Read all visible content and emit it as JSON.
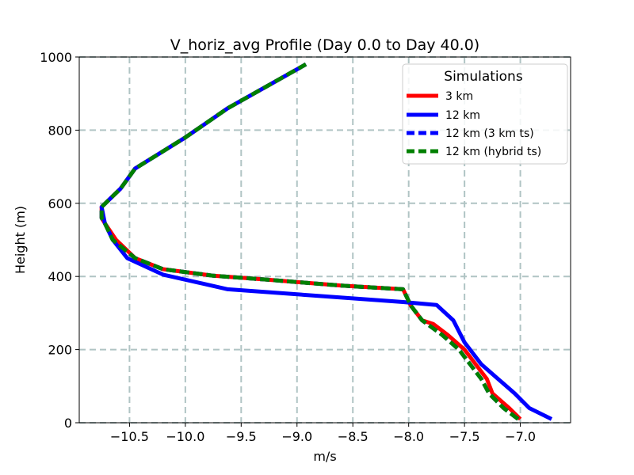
{
  "chart_data": {
    "type": "line",
    "title": "V_horiz_avg Profile (Day 0.0 to Day 40.0)",
    "xlabel": "m/s",
    "ylabel": "Height (m)",
    "xlim": [
      -10.95,
      -6.55
    ],
    "ylim": [
      0,
      1000
    ],
    "xticks": [
      -10.5,
      -10.0,
      -9.5,
      -9.0,
      -8.5,
      -8.0,
      -7.5,
      -7.0
    ],
    "xtick_labels": [
      "−10.5",
      "−10.0",
      "−9.5",
      "−9.0",
      "−8.5",
      "−8.0",
      "−7.5",
      "−7.0"
    ],
    "yticks": [
      0,
      200,
      400,
      600,
      800,
      1000
    ],
    "ytick_labels": [
      "0",
      "200",
      "400",
      "600",
      "800",
      "1000"
    ],
    "grid": true,
    "legend": {
      "title": "Simulations",
      "placement": "upper right"
    },
    "series": [
      {
        "name": "3 km",
        "color": "#ff0000",
        "style": "solid",
        "x": [
          -7.0,
          -7.1,
          -7.25,
          -7.3,
          -7.4,
          -7.5,
          -7.65,
          -7.78,
          -7.88,
          -7.98,
          -8.05,
          -8.6,
          -9.3,
          -9.75,
          -10.2,
          -10.45,
          -10.62,
          -10.72,
          -10.75,
          -10.75,
          -10.58,
          -10.45,
          -10.0,
          -9.62,
          -8.92
        ],
        "y": [
          10,
          40,
          80,
          120,
          160,
          200,
          240,
          270,
          280,
          320,
          365,
          375,
          392,
          402,
          420,
          450,
          500,
          545,
          560,
          590,
          640,
          695,
          780,
          860,
          980
        ]
      },
      {
        "name": "12 km",
        "color": "#0000ff",
        "style": "solid",
        "x": [
          -6.72,
          -6.92,
          -7.05,
          -7.2,
          -7.35,
          -7.5,
          -7.6,
          -7.75,
          -8.05,
          -9.62,
          -10.2,
          -10.52,
          -10.65,
          -10.72,
          -10.75,
          -10.58,
          -10.45,
          -10.0,
          -9.62,
          -8.92
        ],
        "y": [
          10,
          40,
          80,
          120,
          160,
          220,
          280,
          322,
          330,
          365,
          405,
          450,
          500,
          545,
          590,
          640,
          695,
          780,
          860,
          980
        ]
      },
      {
        "name": "12 km (3 km ts)",
        "color": "#0000ff",
        "style": "dashed",
        "x": [
          -7.02,
          -7.15,
          -7.28,
          -7.35,
          -7.45,
          -7.55,
          -7.7,
          -7.88,
          -7.98,
          -8.05,
          -8.6,
          -9.3,
          -9.75,
          -10.2,
          -10.45,
          -10.65,
          -10.72,
          -10.75,
          -10.75,
          -10.58,
          -10.45,
          -10.0,
          -9.62,
          -8.92
        ],
        "y": [
          10,
          40,
          80,
          120,
          160,
          200,
          240,
          280,
          320,
          365,
          375,
          392,
          402,
          420,
          450,
          500,
          545,
          560,
          590,
          640,
          695,
          780,
          860,
          980
        ]
      },
      {
        "name": "12 km (hybrid ts)",
        "color": "#008000",
        "style": "dashed",
        "x": [
          -7.02,
          -7.15,
          -7.28,
          -7.35,
          -7.45,
          -7.55,
          -7.7,
          -7.88,
          -7.98,
          -8.05,
          -8.6,
          -9.3,
          -9.75,
          -10.2,
          -10.45,
          -10.65,
          -10.72,
          -10.75,
          -10.75,
          -10.58,
          -10.45,
          -10.0,
          -9.62,
          -8.92
        ],
        "y": [
          10,
          40,
          80,
          120,
          160,
          200,
          240,
          280,
          320,
          365,
          375,
          392,
          402,
          420,
          450,
          500,
          545,
          560,
          590,
          640,
          695,
          780,
          860,
          980
        ]
      }
    ]
  }
}
